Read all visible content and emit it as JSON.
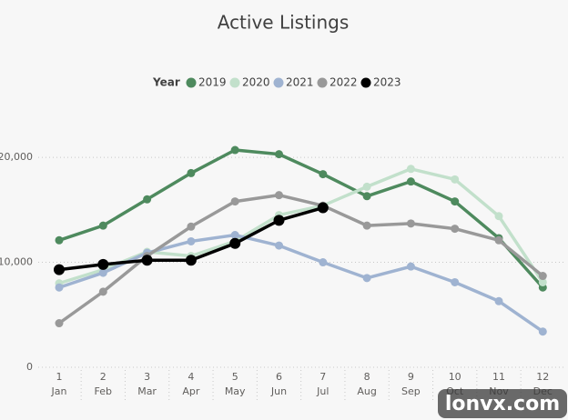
{
  "chart_data": {
    "type": "line",
    "title": "Active Listings",
    "legend_title": "Year",
    "categories": [
      "Jan",
      "Feb",
      "Mar",
      "Apr",
      "May",
      "Jun",
      "Jul",
      "Aug",
      "Sep",
      "Oct",
      "Nov",
      "Dec"
    ],
    "category_numbers": [
      "1",
      "2",
      "3",
      "4",
      "5",
      "6",
      "7",
      "8",
      "9",
      "10",
      "11",
      "12"
    ],
    "series": [
      {
        "name": "2019",
        "color": "#4e8a5e",
        "values": [
          12100,
          13500,
          16000,
          18500,
          20700,
          20300,
          18400,
          16300,
          17700,
          15800,
          12300,
          7600
        ]
      },
      {
        "name": "2020",
        "color": "#c2e0cb",
        "values": [
          8000,
          9300,
          11000,
          10600,
          12000,
          14500,
          15400,
          17200,
          18900,
          17900,
          14400,
          8100
        ]
      },
      {
        "name": "2021",
        "color": "#9fb3d1",
        "values": [
          7600,
          9000,
          10900,
          12000,
          12600,
          11600,
          10000,
          8500,
          9600,
          8100,
          6300,
          3400
        ]
      },
      {
        "name": "2022",
        "color": "#999999",
        "values": [
          4200,
          7200,
          10600,
          13400,
          15800,
          16400,
          15400,
          13500,
          13700,
          13200,
          12100,
          8700
        ]
      },
      {
        "name": "2023",
        "color": "#000000",
        "values": [
          9300,
          9800,
          10200,
          10200,
          11800,
          14000,
          15200,
          null,
          null,
          null,
          null,
          null
        ]
      }
    ],
    "ylim": [
      0,
      22000
    ],
    "yticks": [
      0,
      {
        "value": 10000,
        "label": "10,000"
      },
      {
        "value": 20000,
        "label": "20,000"
      }
    ],
    "grid": true,
    "legend_position": "top",
    "watermark": "lonvx.com"
  }
}
